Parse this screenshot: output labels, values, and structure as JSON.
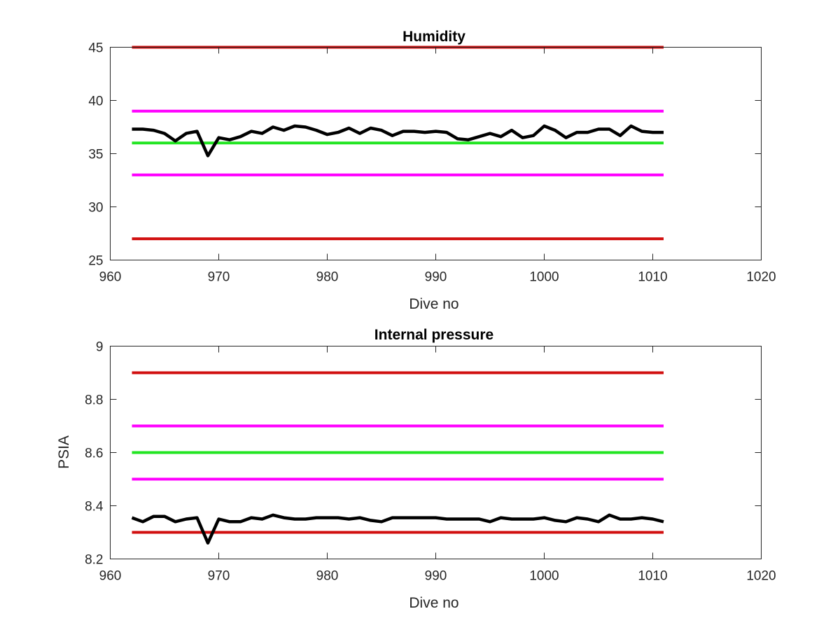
{
  "chart_data": [
    {
      "type": "line",
      "title": "Humidity",
      "xlabel": "Dive no",
      "ylabel": "",
      "xlim": [
        960,
        1020
      ],
      "ylim": [
        25,
        45
      ],
      "xticks": [
        "960",
        "970",
        "980",
        "990",
        "1000",
        "1010",
        "1020"
      ],
      "yticks": [
        "25",
        "30",
        "35",
        "40",
        "45"
      ],
      "grid": false,
      "x": [
        962,
        963,
        964,
        965,
        966,
        967,
        968,
        969,
        970,
        971,
        972,
        973,
        974,
        975,
        976,
        977,
        978,
        979,
        980,
        981,
        982,
        983,
        984,
        985,
        986,
        987,
        988,
        989,
        990,
        991,
        992,
        993,
        994,
        995,
        996,
        997,
        998,
        999,
        1000,
        1001,
        1002,
        1003,
        1004,
        1005,
        1006,
        1007,
        1008,
        1009,
        1010,
        1011
      ],
      "series": [
        {
          "color": "#000000",
          "values": [
            37.3,
            37.3,
            37.2,
            36.9,
            36.2,
            36.9,
            37.1,
            34.8,
            36.5,
            36.3,
            36.6,
            37.1,
            36.9,
            37.5,
            37.2,
            37.6,
            37.5,
            37.2,
            36.8,
            37.0,
            37.4,
            36.9,
            37.4,
            37.2,
            36.7,
            37.1,
            37.1,
            37.0,
            37.1,
            37.0,
            36.4,
            36.3,
            36.6,
            36.9,
            36.6,
            37.2,
            36.5,
            36.7,
            37.6,
            37.2,
            36.5,
            37.0,
            37.0,
            37.3,
            37.3,
            36.7,
            37.6,
            37.1,
            37.0,
            37.0
          ]
        },
        {
          "color": "#d10f0f",
          "x_range": [
            962,
            1011
          ],
          "constant": 45
        },
        {
          "color": "#ff00ff",
          "x_range": [
            962,
            1011
          ],
          "constant": 39
        },
        {
          "color": "#22e522",
          "x_range": [
            962,
            1011
          ],
          "constant": 36
        },
        {
          "color": "#ff00ff",
          "x_range": [
            962,
            1011
          ],
          "constant": 33
        },
        {
          "color": "#d10f0f",
          "x_range": [
            962,
            1011
          ],
          "constant": 27
        }
      ]
    },
    {
      "type": "line",
      "title": "Internal pressure",
      "xlabel": "Dive no",
      "ylabel": "PSIA",
      "xlim": [
        960,
        1020
      ],
      "ylim": [
        8.2,
        9
      ],
      "xticks": [
        "960",
        "970",
        "980",
        "990",
        "1000",
        "1010",
        "1020"
      ],
      "yticks": [
        "8.2",
        "8.4",
        "8.6",
        "8.8",
        "9"
      ],
      "grid": false,
      "x": [
        962,
        963,
        964,
        965,
        966,
        967,
        968,
        969,
        970,
        971,
        972,
        973,
        974,
        975,
        976,
        977,
        978,
        979,
        980,
        981,
        982,
        983,
        984,
        985,
        986,
        987,
        988,
        989,
        990,
        991,
        992,
        993,
        994,
        995,
        996,
        997,
        998,
        999,
        1000,
        1001,
        1002,
        1003,
        1004,
        1005,
        1006,
        1007,
        1008,
        1009,
        1010,
        1011
      ],
      "series": [
        {
          "color": "#000000",
          "values": [
            8.355,
            8.34,
            8.36,
            8.36,
            8.34,
            8.35,
            8.355,
            8.26,
            8.35,
            8.34,
            8.34,
            8.355,
            8.35,
            8.365,
            8.355,
            8.35,
            8.35,
            8.355,
            8.355,
            8.355,
            8.35,
            8.355,
            8.345,
            8.34,
            8.355,
            8.355,
            8.355,
            8.355,
            8.355,
            8.35,
            8.35,
            8.35,
            8.35,
            8.34,
            8.355,
            8.35,
            8.35,
            8.35,
            8.355,
            8.345,
            8.34,
            8.355,
            8.35,
            8.34,
            8.365,
            8.35,
            8.35,
            8.355,
            8.35,
            8.34
          ]
        },
        {
          "color": "#d10f0f",
          "x_range": [
            962,
            1011
          ],
          "constant": 8.9
        },
        {
          "color": "#ff00ff",
          "x_range": [
            962,
            1011
          ],
          "constant": 8.7
        },
        {
          "color": "#22e522",
          "x_range": [
            962,
            1011
          ],
          "constant": 8.6
        },
        {
          "color": "#ff00ff",
          "x_range": [
            962,
            1011
          ],
          "constant": 8.5
        },
        {
          "color": "#d10f0f",
          "x_range": [
            962,
            1011
          ],
          "constant": 8.3
        }
      ]
    }
  ]
}
